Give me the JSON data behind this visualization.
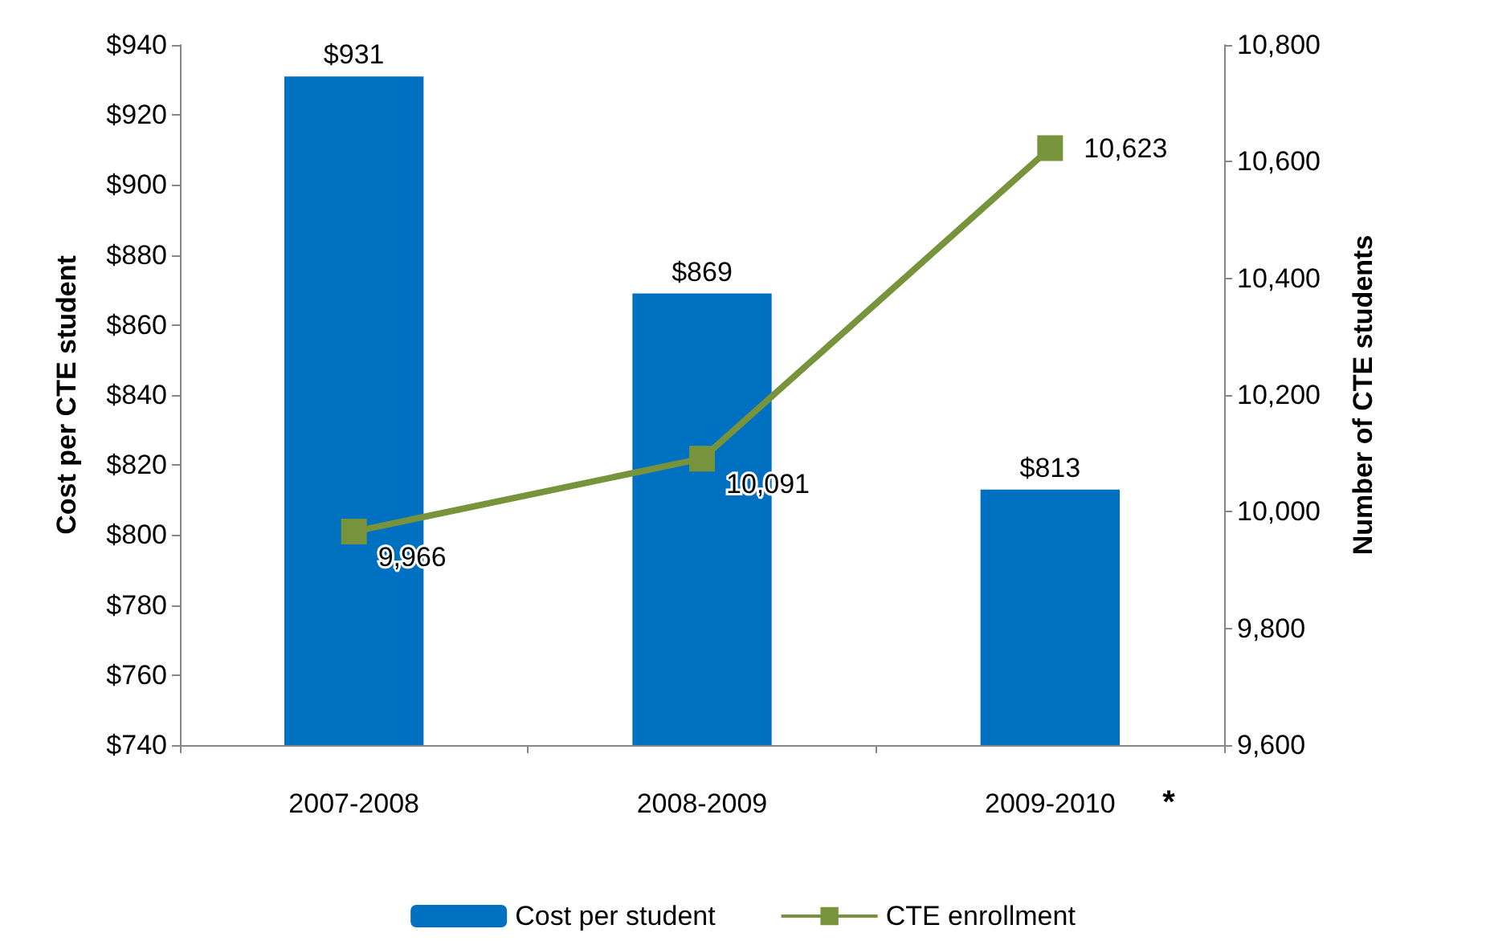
{
  "chart_data": {
    "type": "bar",
    "categories": [
      "2007-2008",
      "2008-2009",
      "2009-2010"
    ],
    "series": [
      {
        "name": "Cost per student",
        "color": "#0070c0",
        "values": [
          931,
          869,
          813
        ],
        "value_labels": [
          "$931",
          "$869",
          "$813"
        ]
      },
      {
        "name": "CTE enrollment",
        "type": "line",
        "axis": "y2",
        "color": "#77933c",
        "marker": "square",
        "values": [
          9966,
          10091,
          10623
        ],
        "value_labels": [
          "9,966",
          "10,091",
          "10,623"
        ]
      }
    ],
    "ylabel": "Cost per CTE student",
    "y2label": "Number of CTE students",
    "ylim": [
      740,
      940
    ],
    "yticks": [
      {
        "value": 740,
        "label": "$740"
      },
      {
        "value": 760,
        "label": "$760"
      },
      {
        "value": 780,
        "label": "$780"
      },
      {
        "value": 800,
        "label": "$800"
      },
      {
        "value": 820,
        "label": "$820"
      },
      {
        "value": 840,
        "label": "$840"
      },
      {
        "value": 860,
        "label": "$860"
      },
      {
        "value": 880,
        "label": "$880"
      },
      {
        "value": 900,
        "label": "$900"
      },
      {
        "value": 920,
        "label": "$920"
      },
      {
        "value": 940,
        "label": "$940"
      }
    ],
    "y2lim": [
      9600,
      10800
    ],
    "y2ticks": [
      {
        "value": 9600,
        "label": "9,600"
      },
      {
        "value": 9800,
        "label": "9,800"
      },
      {
        "value": 10000,
        "label": "10,000"
      },
      {
        "value": 10200,
        "label": "10,200"
      },
      {
        "value": 10400,
        "label": "10,400"
      },
      {
        "value": 10600,
        "label": "10,600"
      },
      {
        "value": 10800,
        "label": "10,800"
      }
    ],
    "annotations": [
      "*"
    ],
    "legend": "bottom",
    "grid": false
  }
}
